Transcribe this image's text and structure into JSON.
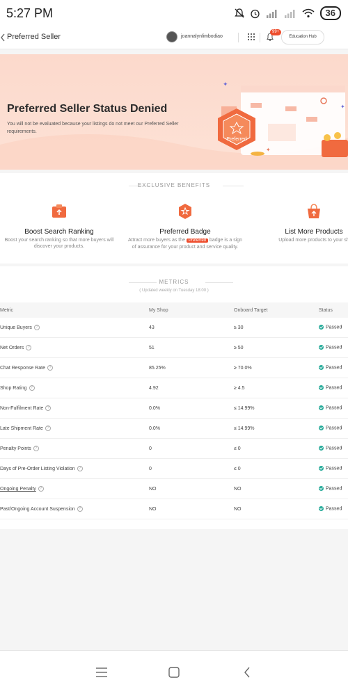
{
  "statusbar": {
    "time": "5:27 PM",
    "battery": "36"
  },
  "header": {
    "back_icon": "chevron-left-icon",
    "title": "Preferred Seller",
    "username": "joannalynlimbodiao",
    "notification_badge": "99+",
    "education_hub": "Education Hub"
  },
  "banner": {
    "title": "Preferred Seller Status Denied",
    "description": "You will not be evaluated because your listings do not meet our Preferred Seller requirements.",
    "badge_text": "Preferred"
  },
  "benefits": {
    "section_title": "EXCLUSIVE BENEFITS",
    "items": [
      {
        "title": "Boost Search Ranking",
        "desc": "Boost your search ranking so that more buyers will discover your products.",
        "icon": "rank-up-icon"
      },
      {
        "title": "Preferred Badge",
        "desc_before": "Attract more buyers as the",
        "desc_pill": "Preferred",
        "desc_after": "badge is a sign of assurance for your product and service quality.",
        "icon": "preferred-badge-icon"
      },
      {
        "title": "List More Products",
        "desc": "Upload more products to your sh",
        "icon": "upload-bag-icon"
      }
    ]
  },
  "metrics": {
    "section_title": "METRICS",
    "updated": "( Updated weekly on Tuesday 18:00 )",
    "columns": {
      "metric": "Metric",
      "my_shop": "My Shop",
      "target": "Onboard Target",
      "status": "Status"
    },
    "rows": [
      {
        "metric": "Unique Buyers",
        "value": "43",
        "target": "≥ 30",
        "status": "Passed"
      },
      {
        "metric": "Net Orders",
        "value": "51",
        "target": "≥ 50",
        "status": "Passed"
      },
      {
        "metric": "Chat Response Rate",
        "value": "85.25%",
        "target": "≥ 70.0%",
        "status": "Passed"
      },
      {
        "metric": "Shop Rating",
        "value": "4.92",
        "target": "≥ 4.5",
        "status": "Passed"
      },
      {
        "metric": "Non-Fulfilment Rate",
        "value": "0.0%",
        "target": "≤ 14.99%",
        "status": "Passed"
      },
      {
        "metric": "Late Shipment Rate",
        "value": "0.0%",
        "target": "≤ 14.99%",
        "status": "Passed"
      },
      {
        "metric": "Penalty Points",
        "value": "0",
        "target": "≤ 0",
        "status": "Passed"
      },
      {
        "metric": "Days of Pre-Order Listing Violation",
        "value": "0",
        "target": "≤ 0",
        "status": "Passed"
      },
      {
        "metric": "Ongoing Penalty",
        "value": "NO",
        "target": "NO",
        "status": "Passed"
      },
      {
        "metric": "Past/Ongoing Account Suspension",
        "value": "NO",
        "target": "NO",
        "status": "Passed"
      }
    ]
  },
  "colors": {
    "accent": "#ee4d2d",
    "passed": "#26aa99",
    "banner_bg": "#fcd9cc"
  }
}
